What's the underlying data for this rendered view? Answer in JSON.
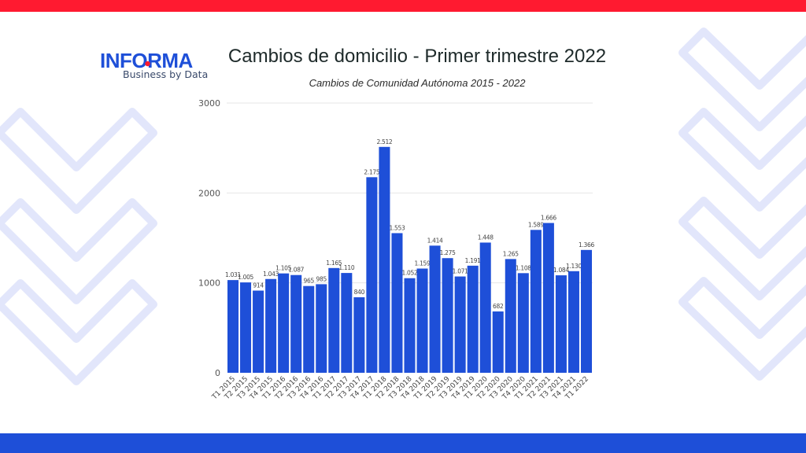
{
  "branding": {
    "logo_text": "INFORMA",
    "logo_tagline": "Business by Data",
    "colors": {
      "primary_blue": "#1e4fd8",
      "accent_red": "#ff1a30",
      "chevron_tint": "#e2e6fb",
      "bar_blue": "#1e4fd8"
    }
  },
  "header": {
    "title": "Cambios de domicilio - Primer trimestre 2022",
    "subtitle": "Cambios de Comunidad Autónoma 2015 - 2022"
  },
  "chart_data": {
    "type": "bar",
    "title": "Cambios de domicilio - Primer trimestre 2022",
    "subtitle": "Cambios de Comunidad Autónoma 2015 - 2022",
    "xlabel": "",
    "ylabel": "",
    "ylim": [
      0,
      3000
    ],
    "yticks": [
      0,
      1000,
      2000,
      3000
    ],
    "grid": true,
    "legend": null,
    "categories": [
      "T1 2015",
      "T2 2015",
      "T3 2015",
      "T4 2015",
      "T1 2016",
      "T2 2016",
      "T3 2016",
      "T4 2016",
      "T1 2017",
      "T2 2017",
      "T3 2017",
      "T4 2017",
      "T1 2018",
      "T2 2018",
      "T3 2018",
      "T4 2018",
      "T1 2019",
      "T2 2019",
      "T3 2019",
      "T4 2019",
      "T1 2020",
      "T2 2020",
      "T3 2020",
      "T4 2020",
      "T1 2021",
      "T2 2021",
      "T3 2021",
      "T4 2021",
      "T1 2022"
    ],
    "values": [
      1031,
      1005,
      914,
      1043,
      1105,
      1087,
      965,
      985,
      1165,
      1110,
      840,
      2175,
      2512,
      1553,
      1052,
      1159,
      1414,
      1275,
      1071,
      1191,
      1448,
      682,
      1265,
      1108,
      1589,
      1666,
      1084,
      1130,
      1366
    ],
    "data_labels": [
      "1.031",
      "1.005",
      "914",
      "1.043",
      "1.105",
      "1.087",
      "965",
      "985",
      "1.165",
      "1.110",
      "840",
      "2.175",
      "2.512",
      "1.553",
      "1.052",
      "1.159",
      "1.414",
      "1.275",
      "1.071",
      "1.191",
      "1.448",
      "682",
      "1.265",
      "1.108",
      "1.589",
      "1.666",
      "1.084",
      "1.130",
      "1.366"
    ]
  }
}
